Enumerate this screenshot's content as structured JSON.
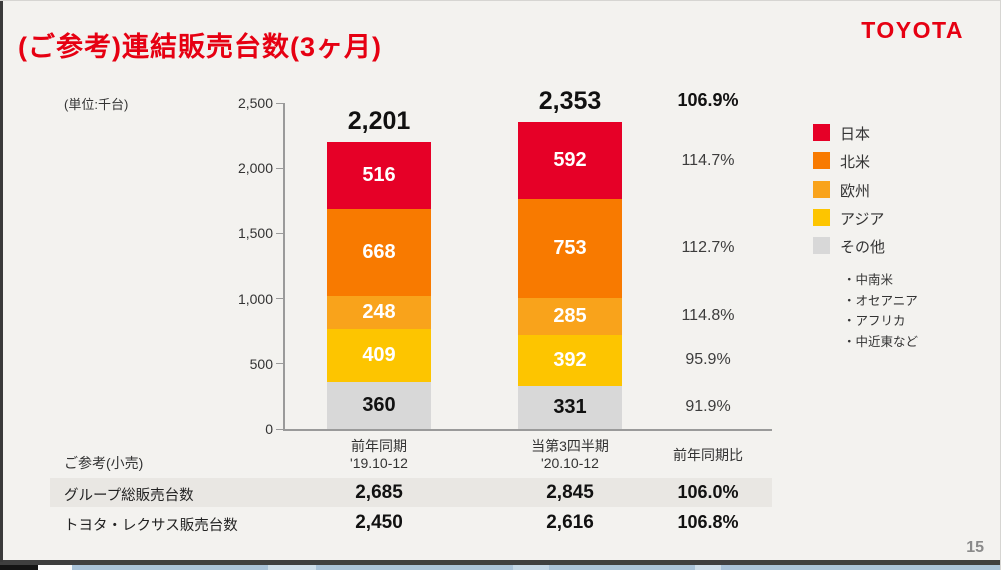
{
  "header": {
    "title": "(ご参考)連結販売台数(3ヶ月)",
    "logo": "TOYOTA",
    "accent_color": "#e60012"
  },
  "chart_data": {
    "type": "bar",
    "stacked": true,
    "unit_label": "(単位:千台)",
    "ylim": [
      0,
      2500
    ],
    "ytick_values": [
      0,
      500,
      1000,
      1500,
      2000,
      2500
    ],
    "ytick_labels": [
      "0",
      "500",
      "1,000",
      "1,500",
      "2,000",
      "2,500"
    ],
    "grid": false,
    "legend_position": "right",
    "categories": [
      {
        "label": "前年同期",
        "sublabel": "'19.10-12",
        "total": 2201,
        "total_label": "2,201"
      },
      {
        "label": "当第3四半期",
        "sublabel": "'20.10-12",
        "total": 2353,
        "total_label": "2,353"
      }
    ],
    "series": [
      {
        "name": "日本",
        "key": "japan",
        "color": "#e60027",
        "value_color": "#ffffff",
        "values": [
          516,
          592
        ],
        "yoy": "114.7%"
      },
      {
        "name": "北米",
        "key": "north-america",
        "color": "#f87a00",
        "value_color": "#ffffff",
        "values": [
          668,
          753
        ],
        "yoy": "112.7%"
      },
      {
        "name": "欧州",
        "key": "europe",
        "color": "#f9a31b",
        "value_color": "#ffffff",
        "values": [
          248,
          285
        ],
        "yoy": "114.8%"
      },
      {
        "name": "アジア",
        "key": "asia",
        "color": "#fdc500",
        "value_color": "#ffffff",
        "values": [
          409,
          392
        ],
        "yoy": "95.9%"
      },
      {
        "name": "その他",
        "key": "others",
        "color": "#d8d8d8",
        "value_color": "#111111",
        "values": [
          360,
          331
        ],
        "yoy": "91.9%"
      }
    ],
    "total_yoy": "106.9%",
    "yoy_header": "前年同期比",
    "legend_notes": [
      "・中南米",
      "・オセアニア",
      "・アフリカ",
      "・中近東など"
    ]
  },
  "table": {
    "caption": "ご参考(小売)",
    "rows": [
      {
        "label": "グループ総販売台数",
        "values": [
          "2,685",
          "2,845"
        ],
        "yoy": "106.0%"
      },
      {
        "label": "トヨタ・レクサス販売台数",
        "values": [
          "2,450",
          "2,616"
        ],
        "yoy": "106.8%"
      }
    ]
  },
  "footer": {
    "page_number": "15"
  }
}
